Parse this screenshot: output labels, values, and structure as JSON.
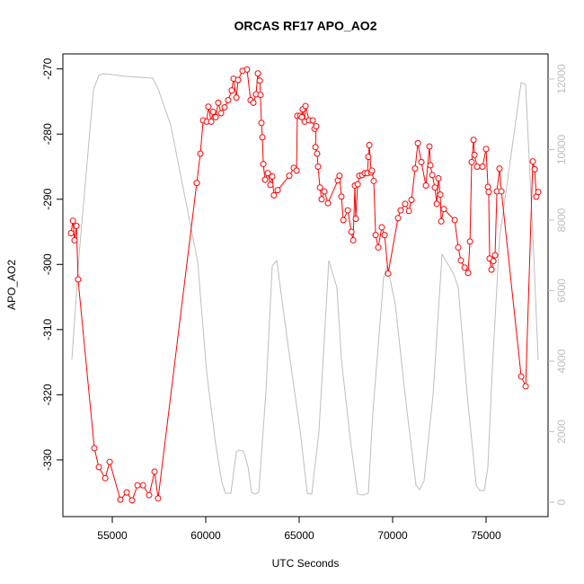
{
  "chart_data": {
    "type": "line",
    "title": "ORCAS RF17 APO_AO2",
    "xlabel": "UTC Seconds",
    "ylabel": "APO_AO2",
    "xlim": [
      52356,
      78317
    ],
    "xticks": [
      55000,
      60000,
      65000,
      70000,
      75000
    ],
    "ylim": [
      -338.7,
      -267.7
    ],
    "yticks": [
      -330,
      -320,
      -310,
      -300,
      -290,
      -280,
      -270
    ],
    "y2lim": [
      -408,
      12713
    ],
    "y2ticks": [
      0,
      2000,
      4000,
      6000,
      8000,
      10000,
      12000
    ],
    "series": [
      {
        "color": "#ff0000",
        "markers": true,
        "x": [
          52790,
          52890,
          52980,
          53080,
          53170,
          54040,
          54280,
          54620,
          54860,
          55430,
          55770,
          56060,
          56350,
          56640,
          56970,
          57260,
          57450,
          59520,
          59710,
          59860,
          60050,
          60140,
          60290,
          60390,
          60530,
          60670,
          60820,
          61010,
          61200,
          61390,
          61490,
          61640,
          61730,
          61970,
          62210,
          62400,
          62550,
          62690,
          62790,
          62890,
          62930,
          62980,
          63030,
          63080,
          63170,
          63320,
          63460,
          63560,
          63650,
          63850,
          64470,
          64710,
          64860,
          64900,
          65050,
          65140,
          65190,
          65290,
          65340,
          65530,
          65720,
          65820,
          65910,
          65870,
          65960,
          66010,
          66110,
          66200,
          66350,
          66540,
          67070,
          67160,
          67260,
          67360,
          67600,
          67790,
          67890,
          67980,
          68030,
          68130,
          68220,
          68370,
          68510,
          68650,
          68700,
          68750,
          68850,
          68890,
          68990,
          69090,
          69230,
          69420,
          69570,
          69760,
          70290,
          70430,
          70670,
          70870,
          71010,
          71200,
          71350,
          71540,
          71780,
          71970,
          72020,
          72120,
          72260,
          72360,
          72450,
          72550,
          72600,
          72740,
          73320,
          73510,
          73650,
          73850,
          74040,
          74140,
          74230,
          74330,
          74380,
          74520,
          74810,
          75000,
          75100,
          75140,
          75190,
          75290,
          75390,
          75480,
          75580,
          75720,
          75820,
          76880,
          77120,
          77500,
          77600,
          77690,
          77790
        ],
        "values": [
          -295.2,
          -293.3,
          -296.3,
          -294.1,
          -302.3,
          -328.2,
          -331.1,
          -332.8,
          -330.3,
          -336.1,
          -335.0,
          -336.2,
          -333.9,
          -333.9,
          -335.4,
          -331.8,
          -335.9,
          -287.5,
          -283.0,
          -277.9,
          -278.1,
          -275.8,
          -278.1,
          -276.6,
          -277.4,
          -275.2,
          -276.8,
          -275.9,
          -274.8,
          -273.3,
          -271.5,
          -274.4,
          -271.7,
          -270.3,
          -270.1,
          -274.8,
          -275.2,
          -273.9,
          -270.7,
          -271.8,
          -274.0,
          -278.3,
          -280.5,
          -284.6,
          -287.0,
          -286.0,
          -287.8,
          -286.5,
          -289.4,
          -288.6,
          -286.4,
          -285.2,
          -285.6,
          -277.2,
          -277.2,
          -277.4,
          -276.2,
          -278.1,
          -275.7,
          -277.9,
          -277.9,
          -279.2,
          -278.8,
          -282.0,
          -283.0,
          -285.0,
          -288.2,
          -290.0,
          -288.8,
          -290.6,
          -287.1,
          -286.4,
          -289.6,
          -293.2,
          -291.7,
          -295.0,
          -296.3,
          -287.9,
          -293.0,
          -287.7,
          -286.4,
          -286.3,
          -286.0,
          -286.0,
          -283.5,
          -281.7,
          -285.9,
          -285.6,
          -287.2,
          -295.5,
          -297.4,
          -294.3,
          -295.5,
          -301.4,
          -292.9,
          -291.7,
          -290.7,
          -291.8,
          -290.1,
          -285.3,
          -281.4,
          -284.3,
          -287.9,
          -281.9,
          -284.8,
          -286.3,
          -288.2,
          -290.7,
          -286.8,
          -289.3,
          -293.4,
          -291.5,
          -293.2,
          -297.4,
          -299.4,
          -300.5,
          -301.3,
          -296.5,
          -284.3,
          -280.9,
          -283.2,
          -285.0,
          -285.0,
          -282.3,
          -288.1,
          -288.9,
          -299.1,
          -300.8,
          -299.5,
          -298.6,
          -288.8,
          -285.3,
          -288.8,
          -317.2,
          -318.7,
          -284.2,
          -285.4,
          -289.6,
          -288.9
        ]
      },
      {
        "color": "#bebebe",
        "axis": "y2",
        "markers": false,
        "x": [
          52837,
          53221,
          53990,
          54279,
          54519,
          55000,
          55721,
          57163,
          57452,
          58125,
          59567,
          60048,
          60529,
          60865,
          61058,
          61346,
          61635,
          61779,
          62019,
          62260,
          62452,
          62644,
          62837,
          63221,
          63558,
          63798,
          64375,
          65048,
          65433,
          65673,
          66058,
          66587,
          67019,
          67260,
          67740,
          68125,
          68413,
          68702,
          68942,
          69519,
          69712,
          70144,
          70721,
          71250,
          71442,
          71683,
          72163,
          72644,
          73269,
          73510,
          73990,
          74471,
          74663,
          74904,
          75096,
          75337,
          75721,
          76875,
          77115,
          77548,
          77788
        ],
        "values": [
          4051,
          7006,
          11694,
          12102,
          12153,
          12127,
          12076,
          12025,
          11720,
          10701,
          6828,
          3694,
          1656,
          561,
          255,
          255,
          1427,
          1478,
          1452,
          1019,
          280,
          229,
          280,
          3134,
          6701,
          6854,
          4561,
          2038,
          255,
          229,
          2013,
          6854,
          6089,
          4051,
          1758,
          229,
          204,
          255,
          2548,
          6369,
          6726,
          5605,
          2803,
          484,
          357,
          611,
          3032,
          7032,
          6471,
          6089,
          3032,
          484,
          331,
          331,
          994,
          3796,
          7490,
          11898,
          11847,
          7083,
          4025
        ]
      }
    ]
  }
}
